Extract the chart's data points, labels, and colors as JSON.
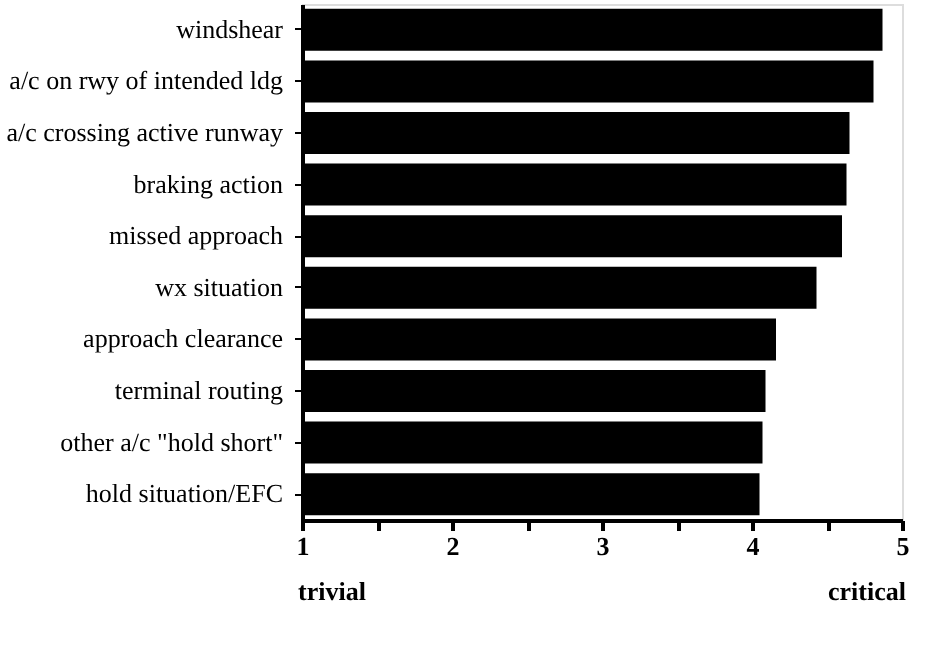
{
  "chart_data": {
    "type": "bar",
    "orientation": "horizontal",
    "categories": [
      "windshear",
      "a/c on rwy of intended ldg",
      "a/c crossing active runway",
      "braking action",
      "missed approach",
      "wx situation",
      "approach clearance",
      "terminal routing",
      "other a/c \"hold short\"",
      "hold situation/EFC"
    ],
    "values": [
      4.87,
      4.81,
      4.65,
      4.63,
      4.6,
      4.43,
      4.16,
      4.09,
      4.07,
      4.05
    ],
    "color": "#000000",
    "xlim": [
      1,
      5
    ],
    "xticks": [
      1,
      {
        "value": 1.5,
        "label": null
      },
      2,
      {
        "value": 2.5,
        "label": null
      },
      3,
      {
        "value": 3.5,
        "label": null
      },
      4,
      {
        "value": 4.5,
        "label": null
      },
      5
    ],
    "annotations": [
      "trivial",
      "critical"
    ],
    "grid": false
  }
}
